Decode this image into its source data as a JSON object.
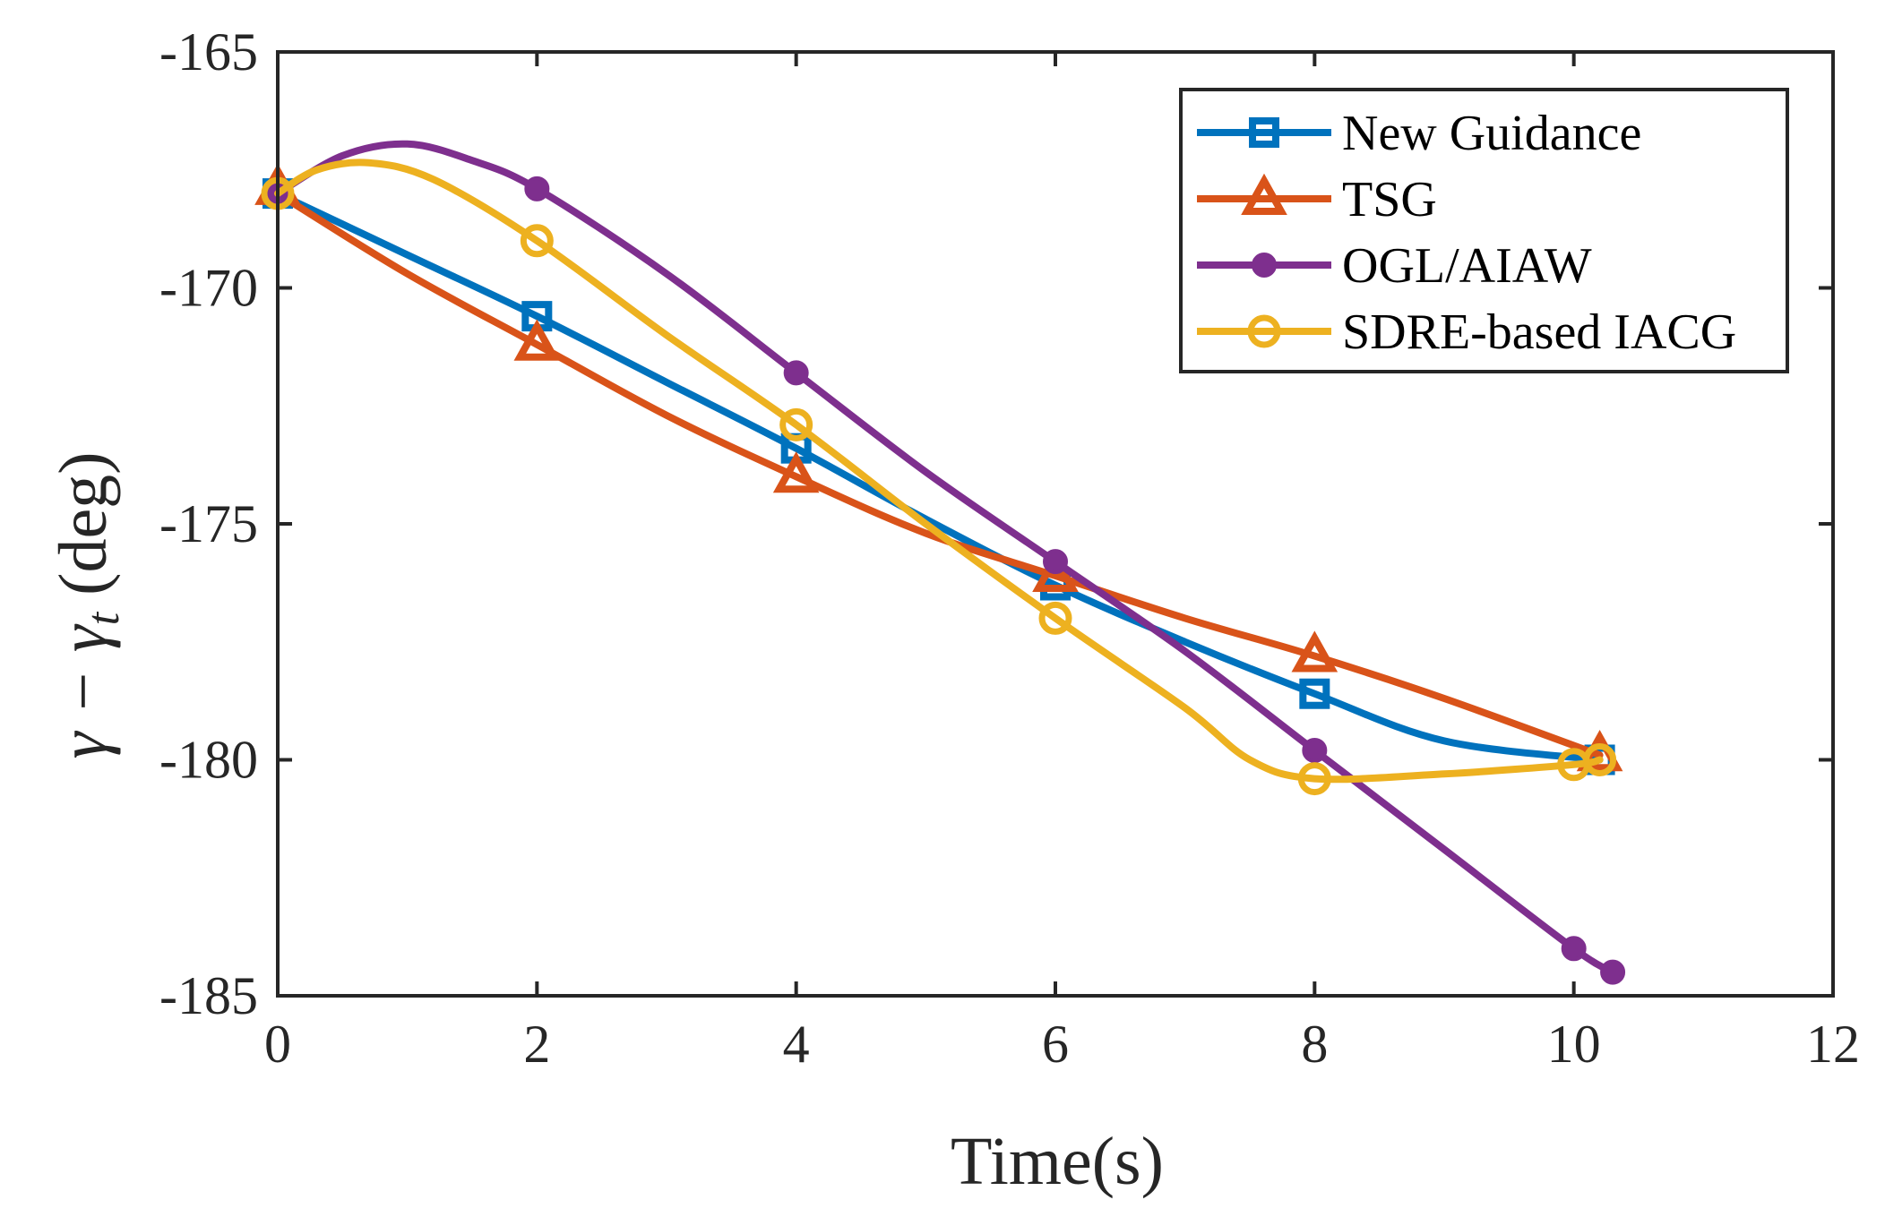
{
  "chart_data": {
    "type": "line",
    "title": "",
    "xlabel": "Time(s)",
    "ylabel_parts": [
      "γ − γ",
      "t",
      " (deg)"
    ],
    "xlim": [
      0,
      12
    ],
    "ylim": [
      -185,
      -165
    ],
    "xticks": [
      0,
      2,
      4,
      6,
      8,
      10,
      12
    ],
    "yticks": [
      -165,
      -170,
      -175,
      -180,
      -185
    ],
    "grid": false,
    "legend_position": "top-right",
    "series": [
      {
        "name": "New Guidance",
        "color": "#0072BD",
        "marker": "square",
        "line": [
          [
            0,
            -168
          ],
          [
            1,
            -169.3
          ],
          [
            2,
            -170.6
          ],
          [
            3,
            -172.0
          ],
          [
            4,
            -173.4
          ],
          [
            5,
            -174.9
          ],
          [
            6,
            -176.3
          ],
          [
            7,
            -177.5
          ],
          [
            8,
            -178.6
          ],
          [
            9,
            -179.6
          ],
          [
            10.2,
            -180.0
          ]
        ],
        "markers": [
          [
            0,
            -168
          ],
          [
            2,
            -170.6
          ],
          [
            4,
            -173.4
          ],
          [
            6,
            -176.3
          ],
          [
            8,
            -178.6
          ],
          [
            10.2,
            -180.0
          ]
        ]
      },
      {
        "name": "TSG",
        "color": "#D95319",
        "marker": "triangle",
        "line": [
          [
            0,
            -168
          ],
          [
            1,
            -169.7
          ],
          [
            2,
            -171.2
          ],
          [
            3,
            -172.7
          ],
          [
            4,
            -174.0
          ],
          [
            5,
            -175.2
          ],
          [
            6,
            -176.1
          ],
          [
            7,
            -177.0
          ],
          [
            8,
            -177.8
          ],
          [
            9,
            -178.7
          ],
          [
            10.2,
            -179.9
          ]
        ],
        "markers": [
          [
            0,
            -167.9
          ],
          [
            2,
            -171.2
          ],
          [
            4,
            -174.0
          ],
          [
            6,
            -176.1
          ],
          [
            8,
            -177.8
          ],
          [
            10.2,
            -179.9
          ]
        ]
      },
      {
        "name": "OGL/AIAW",
        "color": "#7E2F8E",
        "marker": "circle-filled",
        "line": [
          [
            0,
            -168
          ],
          [
            0.5,
            -167.2
          ],
          [
            1,
            -166.95
          ],
          [
            1.5,
            -167.3
          ],
          [
            2,
            -167.9
          ],
          [
            3,
            -169.7
          ],
          [
            4,
            -171.8
          ],
          [
            5,
            -173.9
          ],
          [
            6,
            -175.8
          ],
          [
            7,
            -177.7
          ],
          [
            8,
            -179.8
          ],
          [
            9,
            -181.9
          ],
          [
            10,
            -184.0
          ],
          [
            10.3,
            -184.5
          ]
        ],
        "markers": [
          [
            0,
            -168
          ],
          [
            2,
            -167.9
          ],
          [
            4,
            -171.8
          ],
          [
            6,
            -175.8
          ],
          [
            8,
            -179.8
          ],
          [
            10,
            -184.0
          ],
          [
            10.3,
            -184.5
          ]
        ]
      },
      {
        "name": "SDRE-based IACG",
        "color": "#EDB120",
        "marker": "circle-open",
        "line": [
          [
            0,
            -168
          ],
          [
            0.3,
            -167.5
          ],
          [
            0.7,
            -167.35
          ],
          [
            1.2,
            -167.7
          ],
          [
            2,
            -169.0
          ],
          [
            3,
            -171.0
          ],
          [
            4,
            -172.9
          ],
          [
            5,
            -175.0
          ],
          [
            6,
            -177.0
          ],
          [
            7,
            -178.9
          ],
          [
            7.5,
            -180.0
          ],
          [
            8,
            -180.4
          ],
          [
            9,
            -180.3
          ],
          [
            10,
            -180.1
          ],
          [
            10.2,
            -180.0
          ]
        ],
        "markers": [
          [
            0,
            -168
          ],
          [
            2,
            -169.0
          ],
          [
            4,
            -172.9
          ],
          [
            6,
            -177.0
          ],
          [
            8,
            -180.4
          ],
          [
            10,
            -180.1
          ],
          [
            10.2,
            -180.0
          ]
        ]
      }
    ]
  }
}
